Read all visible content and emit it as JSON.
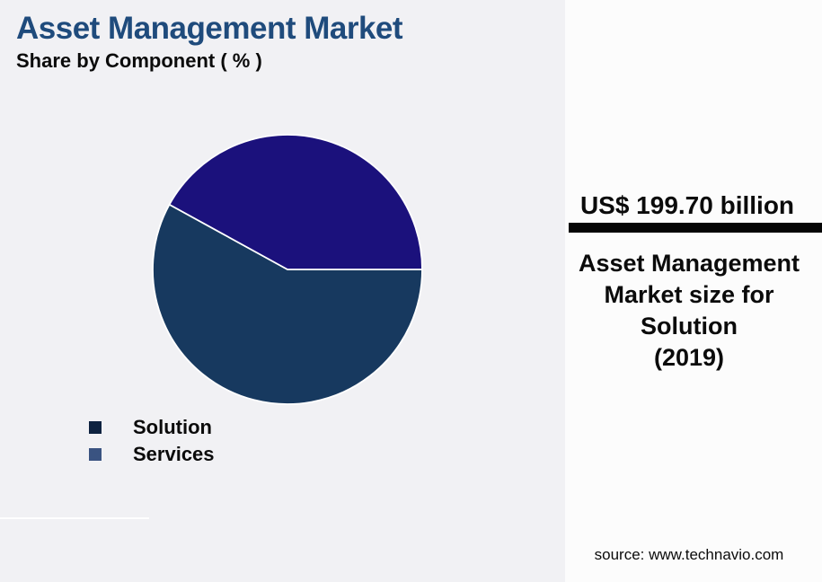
{
  "header": {
    "title": "Asset Management Market",
    "subtitle": "Share by Component ( % )"
  },
  "chart_data": {
    "type": "pie",
    "title": "Asset Management Market",
    "subtitle": "Share by Component ( % )",
    "unit": "%",
    "series": [
      {
        "name": "Solution",
        "value": 58,
        "color": "#17395F"
      },
      {
        "name": "Services",
        "value": 42,
        "color": "#1B117C"
      }
    ],
    "start_angle_deg": 0,
    "direction": "clockwise",
    "slice_border_color": "#FFFFFF",
    "legend_position": "bottom-left",
    "data_labels": "none"
  },
  "legend": {
    "items": [
      {
        "label": "Solution",
        "marker_color": "#0E2240"
      },
      {
        "label": "Services",
        "marker_color": "#3A5381"
      }
    ]
  },
  "panel": {
    "value": "US$ 199.70 billion",
    "caption_lines": [
      "Asset Management",
      "Market size for",
      "Solution",
      "(2019)"
    ],
    "source": "source: www.technavio.com"
  },
  "colors": {
    "background": "#F1F1F4",
    "panel_background": "#FCFCFC",
    "title_accent": "#1F4B7C",
    "text": "#0B0B0B",
    "divider_bar": "#050505"
  }
}
